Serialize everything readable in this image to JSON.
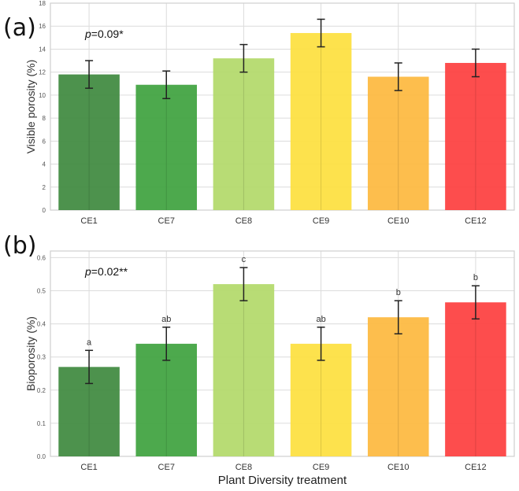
{
  "chart_data": [
    {
      "type": "bar",
      "panel_label": "(a)",
      "annotation": {
        "p_symbol": "p",
        "p_text": "=0.09*"
      },
      "categories": [
        "CE1",
        "CE7",
        "CE8",
        "CE9",
        "CE10",
        "CE12"
      ],
      "values": [
        11.8,
        10.9,
        13.2,
        15.4,
        11.6,
        12.8
      ],
      "errors": [
        1.2,
        1.2,
        1.2,
        1.2,
        1.2,
        1.2
      ],
      "significance_letters": [],
      "colors": [
        "#3f8a3f",
        "#3fa33f",
        "#b3d96a",
        "#fde03f",
        "#fdb93f",
        "#fd3f3f"
      ],
      "ylabel": "Visible porosity (%)",
      "xlabel": "",
      "ylim": [
        0,
        18
      ],
      "yticks": [
        0,
        2,
        4,
        6,
        8,
        10,
        12,
        14,
        16,
        18
      ],
      "ytick_labels": [
        "0",
        "2",
        "4",
        "6",
        "8",
        "10",
        "12",
        "14",
        "16",
        "18"
      ],
      "grid": true
    },
    {
      "type": "bar",
      "panel_label": "(b)",
      "annotation": {
        "p_symbol": "p",
        "p_text": "=0.02**"
      },
      "categories": [
        "CE1",
        "CE7",
        "CE8",
        "CE9",
        "CE10",
        "CE12"
      ],
      "values": [
        0.27,
        0.34,
        0.52,
        0.34,
        0.42,
        0.465
      ],
      "errors": [
        0.05,
        0.05,
        0.05,
        0.05,
        0.05,
        0.05
      ],
      "significance_letters": [
        "a",
        "ab",
        "c",
        "ab",
        "b",
        "b"
      ],
      "colors": [
        "#3f8a3f",
        "#3fa33f",
        "#b3d96a",
        "#fde03f",
        "#fdb93f",
        "#fd3f3f"
      ],
      "ylabel": "Bioporosity (%)",
      "xlabel": "Plant Diversity treatment",
      "ylim": [
        0,
        0.62
      ],
      "yticks": [
        0.0,
        0.1,
        0.2,
        0.3,
        0.4,
        0.5,
        0.6
      ],
      "ytick_labels": [
        "0.0",
        "0.1",
        "0.2",
        "0.3",
        "0.4",
        "0.5",
        "0.6"
      ],
      "grid": true
    }
  ]
}
